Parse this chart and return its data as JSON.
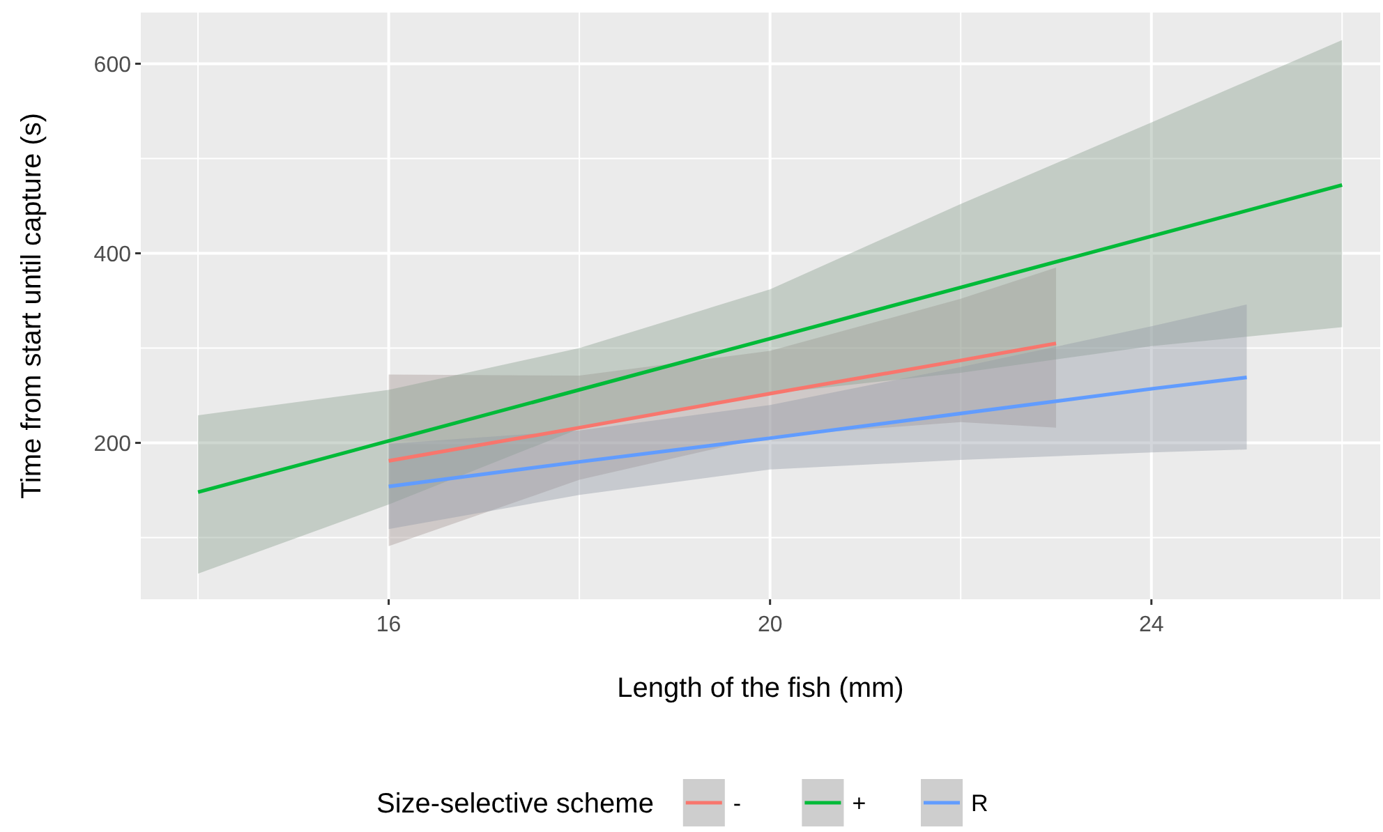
{
  "chart_data": {
    "type": "line",
    "xlabel": "Length of the fish (mm)",
    "ylabel": "Time from start until capture (s)",
    "legend_title": "Size-selective scheme",
    "legend": "bottom",
    "grid": true,
    "xlim": [
      13.4,
      26.4
    ],
    "ylim": [
      35,
      654
    ],
    "xticks": [
      16,
      20,
      24
    ],
    "yticks": [
      200,
      400,
      600
    ],
    "series": [
      {
        "name": "-",
        "color": "#f8766d",
        "x": [
          16,
          18,
          20,
          22,
          23
        ],
        "values": [
          181,
          216,
          252,
          287,
          305
        ],
        "lower": [
          91,
          161,
          207,
          222,
          216
        ],
        "upper": [
          272,
          271,
          297,
          352,
          385
        ]
      },
      {
        "name": "+",
        "color": "#00ba38",
        "x": [
          14,
          16,
          18,
          20,
          22,
          24,
          26
        ],
        "values": [
          148,
          202,
          256,
          310,
          364,
          418,
          472
        ],
        "lower": [
          62,
          135,
          215,
          252,
          274,
          302,
          322
        ],
        "upper": [
          229,
          256,
          300,
          362,
          452,
          538,
          625
        ]
      },
      {
        "name": "R",
        "color": "#619cff",
        "x": [
          16,
          18,
          20,
          22,
          24,
          25
        ],
        "values": [
          154,
          180,
          205,
          231,
          257,
          269
        ],
        "lower": [
          109,
          145,
          172,
          182,
          190,
          193
        ],
        "upper": [
          199,
          213,
          240,
          280,
          323,
          346
        ]
      }
    ]
  }
}
